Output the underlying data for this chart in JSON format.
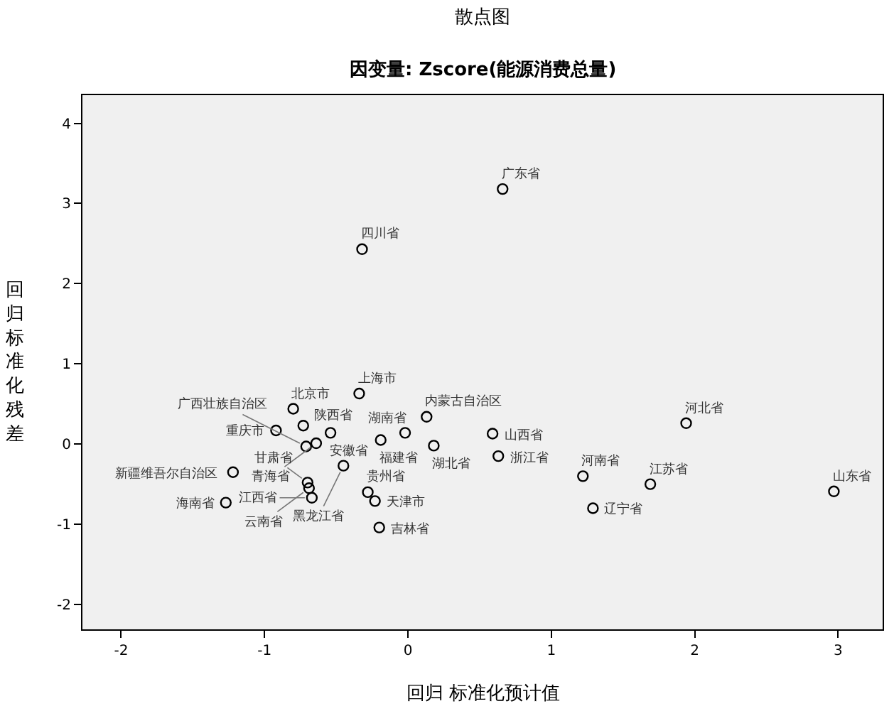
{
  "chart_data": {
    "type": "scatter",
    "title": "散点图",
    "subtitle": "因变量: Zscore(能源消费总量)",
    "xlabel": "回归 标准化预计值",
    "ylabel": "回归标准化残差",
    "xlim": [
      -2.27,
      3.31
    ],
    "ylim": [
      -2.31,
      4.35
    ],
    "xticks": [
      -2,
      -1,
      0,
      1,
      2,
      3
    ],
    "yticks": [
      -2,
      -1,
      0,
      1,
      2,
      3,
      4
    ],
    "grid": false,
    "marker": "circle",
    "series": [
      {
        "color": "#000000",
        "x": [
          -0.8,
          -0.73,
          -0.92,
          -0.54,
          -0.64,
          -0.71,
          -0.34,
          0.13,
          -0.19,
          -0.02,
          0.18,
          0.59,
          0.63,
          -0.45,
          -1.22,
          -0.7,
          -0.69,
          -0.67,
          -1.27,
          -0.28,
          -0.23,
          -0.2,
          1.22,
          1.29,
          1.69,
          1.94,
          2.97,
          0.66,
          -0.32
        ],
        "values": [
          0.44,
          0.23,
          0.17,
          0.14,
          0.01,
          -0.03,
          0.63,
          0.34,
          0.05,
          0.14,
          -0.02,
          0.13,
          -0.15,
          -0.27,
          -0.35,
          -0.48,
          -0.55,
          -0.67,
          -0.73,
          -0.6,
          -0.71,
          -1.04,
          -0.4,
          -0.8,
          -0.5,
          0.26,
          -0.59,
          3.18,
          2.43
        ]
      }
    ],
    "annotations": [
      {
        "text": "北京市",
        "x": -0.8,
        "y": 0.44
      },
      {
        "text": "陕西省",
        "x": -0.73,
        "y": 0.23
      },
      {
        "text": "重庆市",
        "x": -0.92,
        "y": 0.17
      },
      {
        "text": "安徽省",
        "x": -0.54,
        "y": 0.14
      },
      {
        "text": "青海省",
        "x": -0.64,
        "y": 0.01
      },
      {
        "text": "广西壮族自治区",
        "x": -0.71,
        "y": -0.03
      },
      {
        "text": "上海市",
        "x": -0.34,
        "y": 0.63
      },
      {
        "text": "内蒙古自治区",
        "x": 0.13,
        "y": 0.34
      },
      {
        "text": "福建省",
        "x": -0.19,
        "y": 0.05
      },
      {
        "text": "湖南省",
        "x": -0.02,
        "y": 0.14
      },
      {
        "text": "湖北省",
        "x": 0.18,
        "y": -0.02
      },
      {
        "text": "山西省",
        "x": 0.59,
        "y": 0.13
      },
      {
        "text": "浙江省",
        "x": 0.63,
        "y": -0.15
      },
      {
        "text": "黑龙江省",
        "x": -0.45,
        "y": -0.27
      },
      {
        "text": "新疆维吾尔自治区",
        "x": -1.22,
        "y": -0.35
      },
      {
        "text": "甘肃省",
        "x": -0.7,
        "y": -0.48
      },
      {
        "text": "云南省",
        "x": -0.69,
        "y": -0.55
      },
      {
        "text": "江西省",
        "x": -0.67,
        "y": -0.67
      },
      {
        "text": "海南省",
        "x": -1.27,
        "y": -0.73
      },
      {
        "text": "贵州省",
        "x": -0.28,
        "y": -0.6
      },
      {
        "text": "天津市",
        "x": -0.23,
        "y": -0.71
      },
      {
        "text": "吉林省",
        "x": -0.2,
        "y": -1.04
      },
      {
        "text": "河南省",
        "x": 1.22,
        "y": -0.4
      },
      {
        "text": "辽宁省",
        "x": 1.29,
        "y": -0.8
      },
      {
        "text": "江苏省",
        "x": 1.69,
        "y": -0.5
      },
      {
        "text": "河北省",
        "x": 1.94,
        "y": 0.26
      },
      {
        "text": "山东省",
        "x": 2.97,
        "y": -0.59
      },
      {
        "text": "广东省",
        "x": 0.66,
        "y": 3.18
      },
      {
        "text": "四川省",
        "x": -0.32,
        "y": 2.43
      }
    ]
  }
}
